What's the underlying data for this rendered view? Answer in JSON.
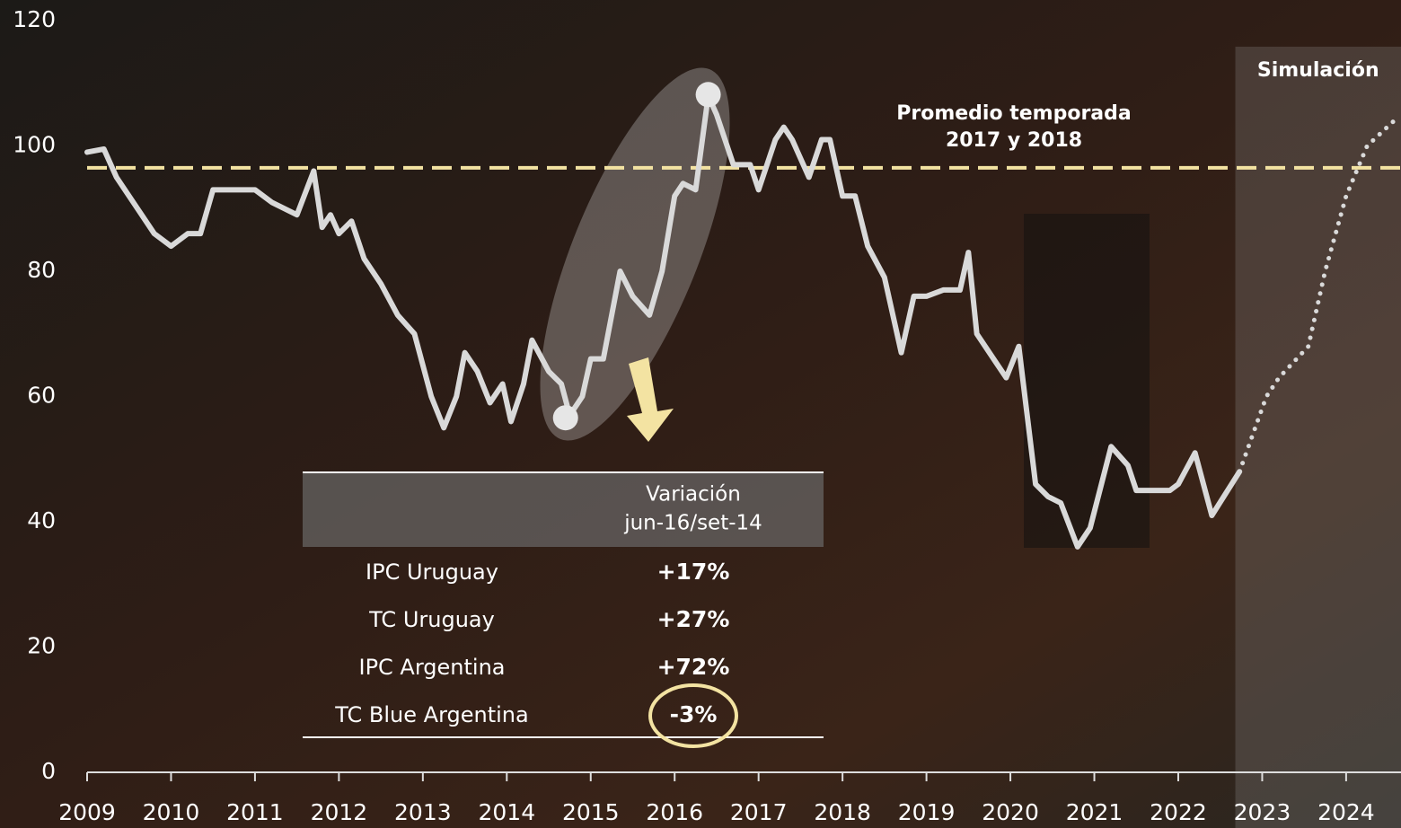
{
  "chart_data": {
    "type": "line",
    "xlim": [
      2009,
      2024.65
    ],
    "xticks": [
      2009,
      2010,
      2011,
      2012,
      2013,
      2014,
      2015,
      2016,
      2017,
      2018,
      2019,
      2020,
      2021,
      2022,
      2023,
      2024
    ],
    "ylim": [
      0,
      120
    ],
    "yticks": [
      0,
      20,
      40,
      60,
      80,
      100,
      120
    ],
    "series": [
      {
        "color": "#d9d9d9",
        "style": "solid",
        "x": [
          2009.0,
          2009.2,
          2009.35,
          2009.6,
          2009.8,
          2010.0,
          2010.2,
          2010.35,
          2010.5,
          2010.8,
          2011.0,
          2011.2,
          2011.5,
          2011.7,
          2011.8,
          2011.9,
          2012.0,
          2012.15,
          2012.3,
          2012.5,
          2012.7,
          2012.9,
          2013.1,
          2013.25,
          2013.4,
          2013.5,
          2013.65,
          2013.8,
          2013.95,
          2014.05,
          2014.2,
          2014.3,
          2014.5,
          2014.65,
          2014.75,
          2014.9,
          2015.0,
          2015.15,
          2015.35,
          2015.5,
          2015.7,
          2015.85,
          2016.0,
          2016.1,
          2016.25,
          2016.4,
          2016.5,
          2016.7,
          2016.9,
          2017.0,
          2017.2,
          2017.3,
          2017.4,
          2017.6,
          2017.75,
          2017.85,
          2018.0,
          2018.15,
          2018.3,
          2018.5,
          2018.7,
          2018.85,
          2019.0,
          2019.2,
          2019.4,
          2019.5,
          2019.6,
          2019.8,
          2019.95,
          2020.1,
          2020.3,
          2020.45,
          2020.6,
          2020.8,
          2020.95,
          2021.2,
          2021.4,
          2021.5,
          2021.7,
          2021.9,
          2022.0,
          2022.2,
          2022.4,
          2022.73
        ],
        "values": [
          99,
          99.5,
          95,
          90,
          86,
          84,
          86,
          86,
          93,
          93,
          93,
          91,
          89,
          96,
          87,
          89,
          86,
          88,
          82,
          78,
          73,
          70,
          60,
          55,
          60,
          67,
          64,
          59,
          62,
          56,
          62,
          69,
          64,
          62,
          57,
          60,
          66,
          66,
          80,
          76,
          73,
          80,
          92,
          94,
          93,
          108,
          105,
          97,
          97,
          93,
          101,
          103,
          101,
          95,
          101,
          101,
          92,
          92,
          84,
          79,
          67,
          76,
          76,
          77,
          77,
          83,
          70,
          66,
          63,
          68,
          46,
          44,
          43,
          36,
          39,
          52,
          49,
          45,
          45,
          45,
          46,
          51,
          41,
          48
        ]
      },
      {
        "color": "#d9d9d9",
        "style": "dotted",
        "x": [
          2022.73,
          2023.05,
          2023.2,
          2023.55,
          2023.75,
          2024.0,
          2024.25,
          2024.57
        ],
        "values": [
          48,
          60,
          63,
          68,
          80,
          92,
          100,
          104
        ]
      }
    ],
    "highlight_points": {
      "x": [
        2014.7,
        2016.4
      ],
      "values": [
        56.6,
        108.2
      ]
    },
    "reference_line": {
      "value": 96.5,
      "color": "#f3e3a2",
      "label": [
        "Promedio temporada",
        "2017 y 2018"
      ]
    },
    "simulation": {
      "start": 2022.68,
      "label": "Simulación"
    },
    "table": {
      "header": [
        "Variación",
        "jun-16/set-14"
      ],
      "rows": [
        [
          "IPC Uruguay",
          "+17%"
        ],
        [
          "TC Uruguay",
          "+27%"
        ],
        [
          "IPC Argentina",
          "+72%"
        ],
        [
          "TC Blue Argentina",
          "-3%"
        ]
      ]
    }
  }
}
